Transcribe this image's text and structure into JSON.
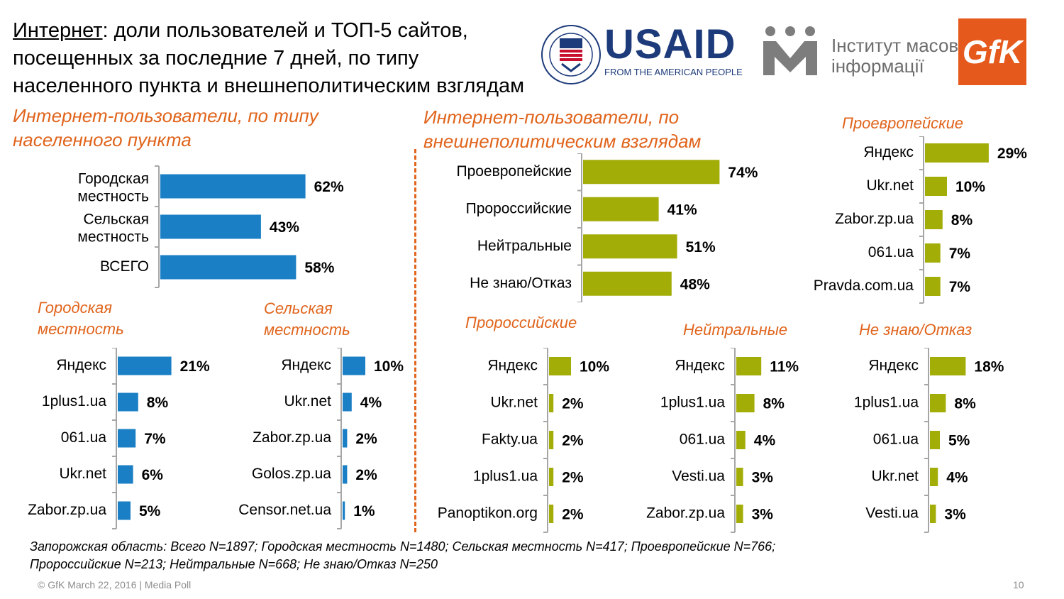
{
  "title": {
    "lead": "Интернет",
    "rest_line1": ": доли пользователей и ТОП-5 сайтов,",
    "line2": "посещенных за последние 7 дней, по типу",
    "line3": "населенного пункта и внешнеполитическим взглядам"
  },
  "logos": {
    "usaid_name": "USAID",
    "usaid_tagline": "FROM THE AMERICAN PEOPLE",
    "imi_line1": "Інститут масової",
    "imi_line2": "інформації",
    "gfk_name": "GfK"
  },
  "colors": {
    "blue": "#1a7fc4",
    "olive": "#a3ad08",
    "accent": "#e0641c",
    "axis": "#a6a6a6"
  },
  "chart_data": [
    {
      "type": "bar",
      "id": "settlement",
      "title": "Интернет-пользователи, по типу населенного пункта",
      "categories": [
        "Городская местность",
        "Сельская местность",
        "ВСЕГО"
      ],
      "values": [
        62,
        43,
        58
      ],
      "value_labels": [
        "62%",
        "43%",
        "58%"
      ],
      "xlim": [
        0,
        100
      ],
      "color": "blue"
    },
    {
      "type": "bar",
      "id": "foreign",
      "title": "Интернет-пользователи, по внешнеполитическим взглядам",
      "categories": [
        "Проевропейские",
        "Пророссийские",
        "Нейтральные",
        "Не знаю/Отказ"
      ],
      "values": [
        74,
        41,
        51,
        48
      ],
      "value_labels": [
        "74%",
        "41%",
        "51%",
        "48%"
      ],
      "xlim": [
        0,
        100
      ],
      "color": "olive"
    },
    {
      "type": "bar",
      "id": "pro-eu",
      "title": "Проевропейские",
      "categories": [
        "Яндекс",
        "Ukr.net",
        "Zabor.zp.ua",
        "061.ua",
        "Pravda.com.ua"
      ],
      "values": [
        29,
        10,
        8,
        7,
        7
      ],
      "value_labels": [
        "29%",
        "10%",
        "8%",
        "7%",
        "7%"
      ],
      "xlim": [
        0,
        100
      ],
      "color": "olive"
    },
    {
      "type": "bar",
      "id": "urban",
      "title": "Городская местность",
      "categories": [
        "Яндекс",
        "1plus1.ua",
        "061.ua",
        "Ukr.net",
        "Zabor.zp.ua"
      ],
      "values": [
        21,
        8,
        7,
        6,
        5
      ],
      "value_labels": [
        "21%",
        "8%",
        "7%",
        "6%",
        "5%"
      ],
      "xlim": [
        0,
        100
      ],
      "color": "blue"
    },
    {
      "type": "bar",
      "id": "rural",
      "title": "Сельская местность",
      "categories": [
        "Яндекс",
        "Ukr.net",
        "Zabor.zp.ua",
        "Golos.zp.ua",
        "Censor.net.ua"
      ],
      "values": [
        10,
        4,
        2,
        2,
        1
      ],
      "value_labels": [
        "10%",
        "4%",
        "2%",
        "2%",
        "1%"
      ],
      "xlim": [
        0,
        100
      ],
      "color": "blue"
    },
    {
      "type": "bar",
      "id": "pro-ru",
      "title": "Пророссийские",
      "categories": [
        "Яндекс",
        "Ukr.net",
        "Fakty.ua",
        "1plus1.ua",
        "Panoptikon.org"
      ],
      "values": [
        10,
        2,
        2,
        2,
        2
      ],
      "value_labels": [
        "10%",
        "2%",
        "2%",
        "2%",
        "2%"
      ],
      "xlim": [
        0,
        100
      ],
      "color": "olive"
    },
    {
      "type": "bar",
      "id": "neutral",
      "title": "Нейтральные",
      "categories": [
        "Яндекс",
        "1plus1.ua",
        "061.ua",
        "Vesti.ua",
        "Zabor.zp.ua"
      ],
      "values": [
        11,
        8,
        4,
        3,
        3
      ],
      "value_labels": [
        "11%",
        "8%",
        "4%",
        "3%",
        "3%"
      ],
      "xlim": [
        0,
        100
      ],
      "color": "olive"
    },
    {
      "type": "bar",
      "id": "dk",
      "title": "Не знаю/Отказ",
      "categories": [
        "Яндекс",
        "1plus1.ua",
        "061.ua",
        "Ukr.net",
        "Vesti.ua"
      ],
      "values": [
        18,
        8,
        5,
        4,
        3
      ],
      "value_labels": [
        "18%",
        "8%",
        "5%",
        "4%",
        "3%"
      ],
      "xlim": [
        0,
        100
      ],
      "color": "olive"
    }
  ],
  "headings": {
    "settlement_line1": "Интернет-пользователи, по типу",
    "settlement_line2": "населенного пункта",
    "foreign_line1": "Интернет-пользователи, по",
    "foreign_line2": "внешнеполитическим взглядам",
    "pro_eu": "Проевропейские",
    "urban_line1": "Городская",
    "urban_line2": "местность",
    "rural_line1": "Сельская",
    "rural_line2": "местность",
    "pro_ru": "Пророссийские",
    "neutral": "Нейтральные",
    "dk": "Не знаю/Отказ"
  },
  "footnote": {
    "line1": "Запорожская область: Всего N=1897; Городская местность N=1480; Сельская местность N=417; Проевропейские N=766;",
    "line2": "Пророссийские N=213; Нейтральные N=668; Не знаю/Отказ N=250"
  },
  "footer": {
    "copyright": "© GfK March 22, 2016 | Media Poll",
    "page": "10"
  }
}
